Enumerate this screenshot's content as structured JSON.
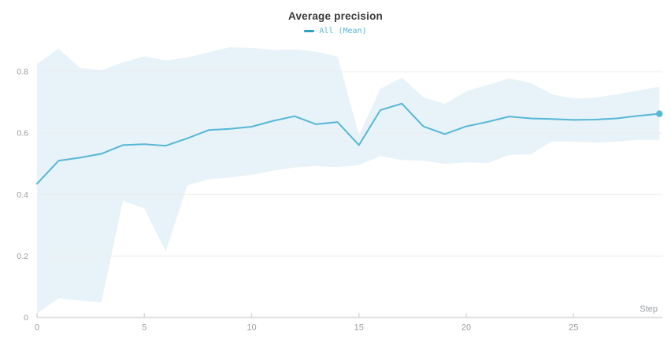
{
  "chart_data": {
    "type": "line",
    "title": "Average precision",
    "xlabel": "Step",
    "ylabel": "",
    "legend_position": "top-center",
    "grid": "horizontal",
    "end_marker": true,
    "x": [
      0,
      1,
      2,
      3,
      4,
      5,
      6,
      7,
      8,
      9,
      10,
      11,
      12,
      13,
      14,
      15,
      16,
      17,
      18,
      19,
      20,
      21,
      22,
      23,
      24,
      25,
      26,
      27,
      28,
      29
    ],
    "series": [
      {
        "name": "All (Mean)",
        "color": "#56b7d7",
        "values": [
          0.435,
          0.51,
          0.52,
          0.533,
          0.561,
          0.564,
          0.559,
          0.583,
          0.61,
          0.614,
          0.621,
          0.64,
          0.655,
          0.629,
          0.636,
          0.561,
          0.675,
          0.696,
          0.622,
          0.597,
          0.622,
          0.637,
          0.654,
          0.648,
          0.646,
          0.643,
          0.644,
          0.648,
          0.656,
          0.663
        ]
      }
    ],
    "bands": [
      {
        "series": "All (Mean)",
        "color": "#e7f3f8",
        "lower": [
          0.013,
          0.062,
          0.055,
          0.049,
          0.38,
          0.355,
          0.215,
          0.43,
          0.45,
          0.456,
          0.464,
          0.478,
          0.488,
          0.493,
          0.49,
          0.496,
          0.525,
          0.513,
          0.51,
          0.5,
          0.505,
          0.503,
          0.529,
          0.531,
          0.573,
          0.572,
          0.569,
          0.572,
          0.578,
          0.578
        ],
        "upper": [
          0.825,
          0.875,
          0.812,
          0.805,
          0.83,
          0.85,
          0.837,
          0.846,
          0.863,
          0.88,
          0.877,
          0.871,
          0.873,
          0.865,
          0.85,
          0.593,
          0.744,
          0.781,
          0.717,
          0.695,
          0.736,
          0.757,
          0.778,
          0.764,
          0.726,
          0.713,
          0.715,
          0.726,
          0.738,
          0.751
        ]
      }
    ],
    "x_ticks": [
      "0",
      "5",
      "10",
      "15",
      "20",
      "25"
    ],
    "y_ticks": [
      "0",
      "0.2",
      "0.4",
      "0.6",
      "0.8"
    ],
    "xlim": [
      0,
      29.2
    ],
    "ylim": [
      0,
      0.89
    ]
  },
  "theme": {
    "background": "#ffffff",
    "title_color": "#3a3a3a",
    "line": "#56b7d7",
    "marker": "#57b9d8",
    "band": "#e7f3f8",
    "legend_dash": "#2aa0c2",
    "legend_text": "#56b7d7",
    "grid": "#ececec",
    "axis": "#e3e3e3",
    "tick": "#d9d9d9",
    "tick_label": "#9b9b9b",
    "axis_label": "#9aa0a6"
  }
}
